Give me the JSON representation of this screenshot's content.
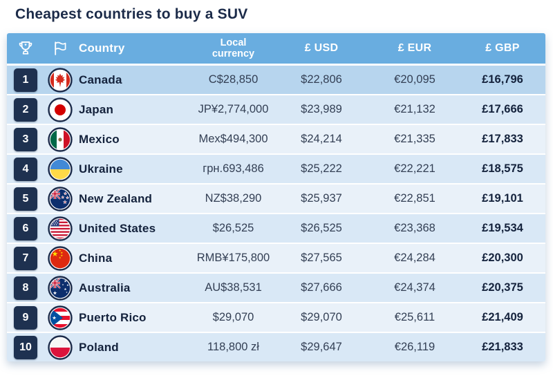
{
  "title": "Cheapest countries to buy a SUV",
  "colors": {
    "header_bg": "#69ade0",
    "row_highlight": "#b7d5ee",
    "row_alt_blue": "#d9e8f6",
    "row_alt_light": "#e9f1f9",
    "rank_badge": "#1e3150",
    "title_text": "#1c2b49",
    "value_text": "#333f54"
  },
  "table": {
    "header": {
      "rank_icon": "trophy-icon",
      "flag_icon": "flag-icon",
      "country": "Country",
      "local_currency": "Local\ncurrency",
      "usd": "£ USD",
      "eur": "£ EUR",
      "gbp": "£ GBP"
    },
    "rows": [
      {
        "rank": "1",
        "country": "Canada",
        "flag": "canada",
        "local": "C$28,850",
        "usd": "$22,806",
        "eur": "€20,095",
        "gbp": "£16,796"
      },
      {
        "rank": "2",
        "country": "Japan",
        "flag": "japan",
        "local": "JP¥2,774,000",
        "usd": "$23,989",
        "eur": "€21,132",
        "gbp": "£17,666"
      },
      {
        "rank": "3",
        "country": "Mexico",
        "flag": "mexico",
        "local": "Mex$494,300",
        "usd": "$24,214",
        "eur": "€21,335",
        "gbp": "£17,833"
      },
      {
        "rank": "4",
        "country": "Ukraine",
        "flag": "ukraine",
        "local": "грн.693,486",
        "usd": "$25,222",
        "eur": "€22,221",
        "gbp": "£18,575"
      },
      {
        "rank": "5",
        "country": "New Zealand",
        "flag": "new_zealand",
        "local": "NZ$38,290",
        "usd": "$25,937",
        "eur": "€22,851",
        "gbp": "£19,101"
      },
      {
        "rank": "6",
        "country": "United States",
        "flag": "united_states",
        "local": "$26,525",
        "usd": "$26,525",
        "eur": "€23,368",
        "gbp": "£19,534"
      },
      {
        "rank": "7",
        "country": "China",
        "flag": "china",
        "local": "RMB¥175,800",
        "usd": "$27,565",
        "eur": "€24,284",
        "gbp": "£20,300"
      },
      {
        "rank": "8",
        "country": "Australia",
        "flag": "australia",
        "local": "AU$38,531",
        "usd": "$27,666",
        "eur": "€24,374",
        "gbp": "£20,375"
      },
      {
        "rank": "9",
        "country": "Puerto Rico",
        "flag": "puerto_rico",
        "local": "$29,070",
        "usd": "$29,070",
        "eur": "€25,611",
        "gbp": "£21,409"
      },
      {
        "rank": "10",
        "country": "Poland",
        "flag": "poland",
        "local": "118,800 zł",
        "usd": "$29,647",
        "eur": "€26,119",
        "gbp": "£21,833"
      }
    ]
  },
  "chart_data": {
    "type": "table",
    "title": "Cheapest countries to buy a SUV",
    "columns": [
      "Rank",
      "Country",
      "Local currency",
      "£ USD",
      "£ EUR",
      "£ GBP"
    ],
    "rows": [
      [
        1,
        "Canada",
        "C$28,850",
        "$22,806",
        "€20,095",
        "£16,796"
      ],
      [
        2,
        "Japan",
        "JP¥2,774,000",
        "$23,989",
        "€21,132",
        "£17,666"
      ],
      [
        3,
        "Mexico",
        "Mex$494,300",
        "$24,214",
        "€21,335",
        "£17,833"
      ],
      [
        4,
        "Ukraine",
        "грн.693,486",
        "$25,222",
        "€22,221",
        "£18,575"
      ],
      [
        5,
        "New Zealand",
        "NZ$38,290",
        "$25,937",
        "€22,851",
        "£19,101"
      ],
      [
        6,
        "United States",
        "$26,525",
        "$26,525",
        "€23,368",
        "£19,534"
      ],
      [
        7,
        "China",
        "RMB¥175,800",
        "$27,565",
        "€24,284",
        "£20,300"
      ],
      [
        8,
        "Australia",
        "AU$38,531",
        "$27,666",
        "€24,374",
        "£20,375"
      ],
      [
        9,
        "Puerto Rico",
        "$29,070",
        "$29,070",
        "€25,611",
        "£21,409"
      ],
      [
        10,
        "Poland",
        "118,800 zł",
        "$29,647",
        "€26,119",
        "£21,833"
      ]
    ],
    "usd_values": [
      22806,
      23989,
      24214,
      25222,
      25937,
      26525,
      27565,
      27666,
      29070,
      29647
    ],
    "eur_values": [
      20095,
      21132,
      21335,
      22221,
      22851,
      23368,
      24284,
      24374,
      25611,
      26119
    ],
    "gbp_values": [
      16796,
      17666,
      17833,
      18575,
      19101,
      19534,
      20300,
      20375,
      21409,
      21833
    ]
  }
}
